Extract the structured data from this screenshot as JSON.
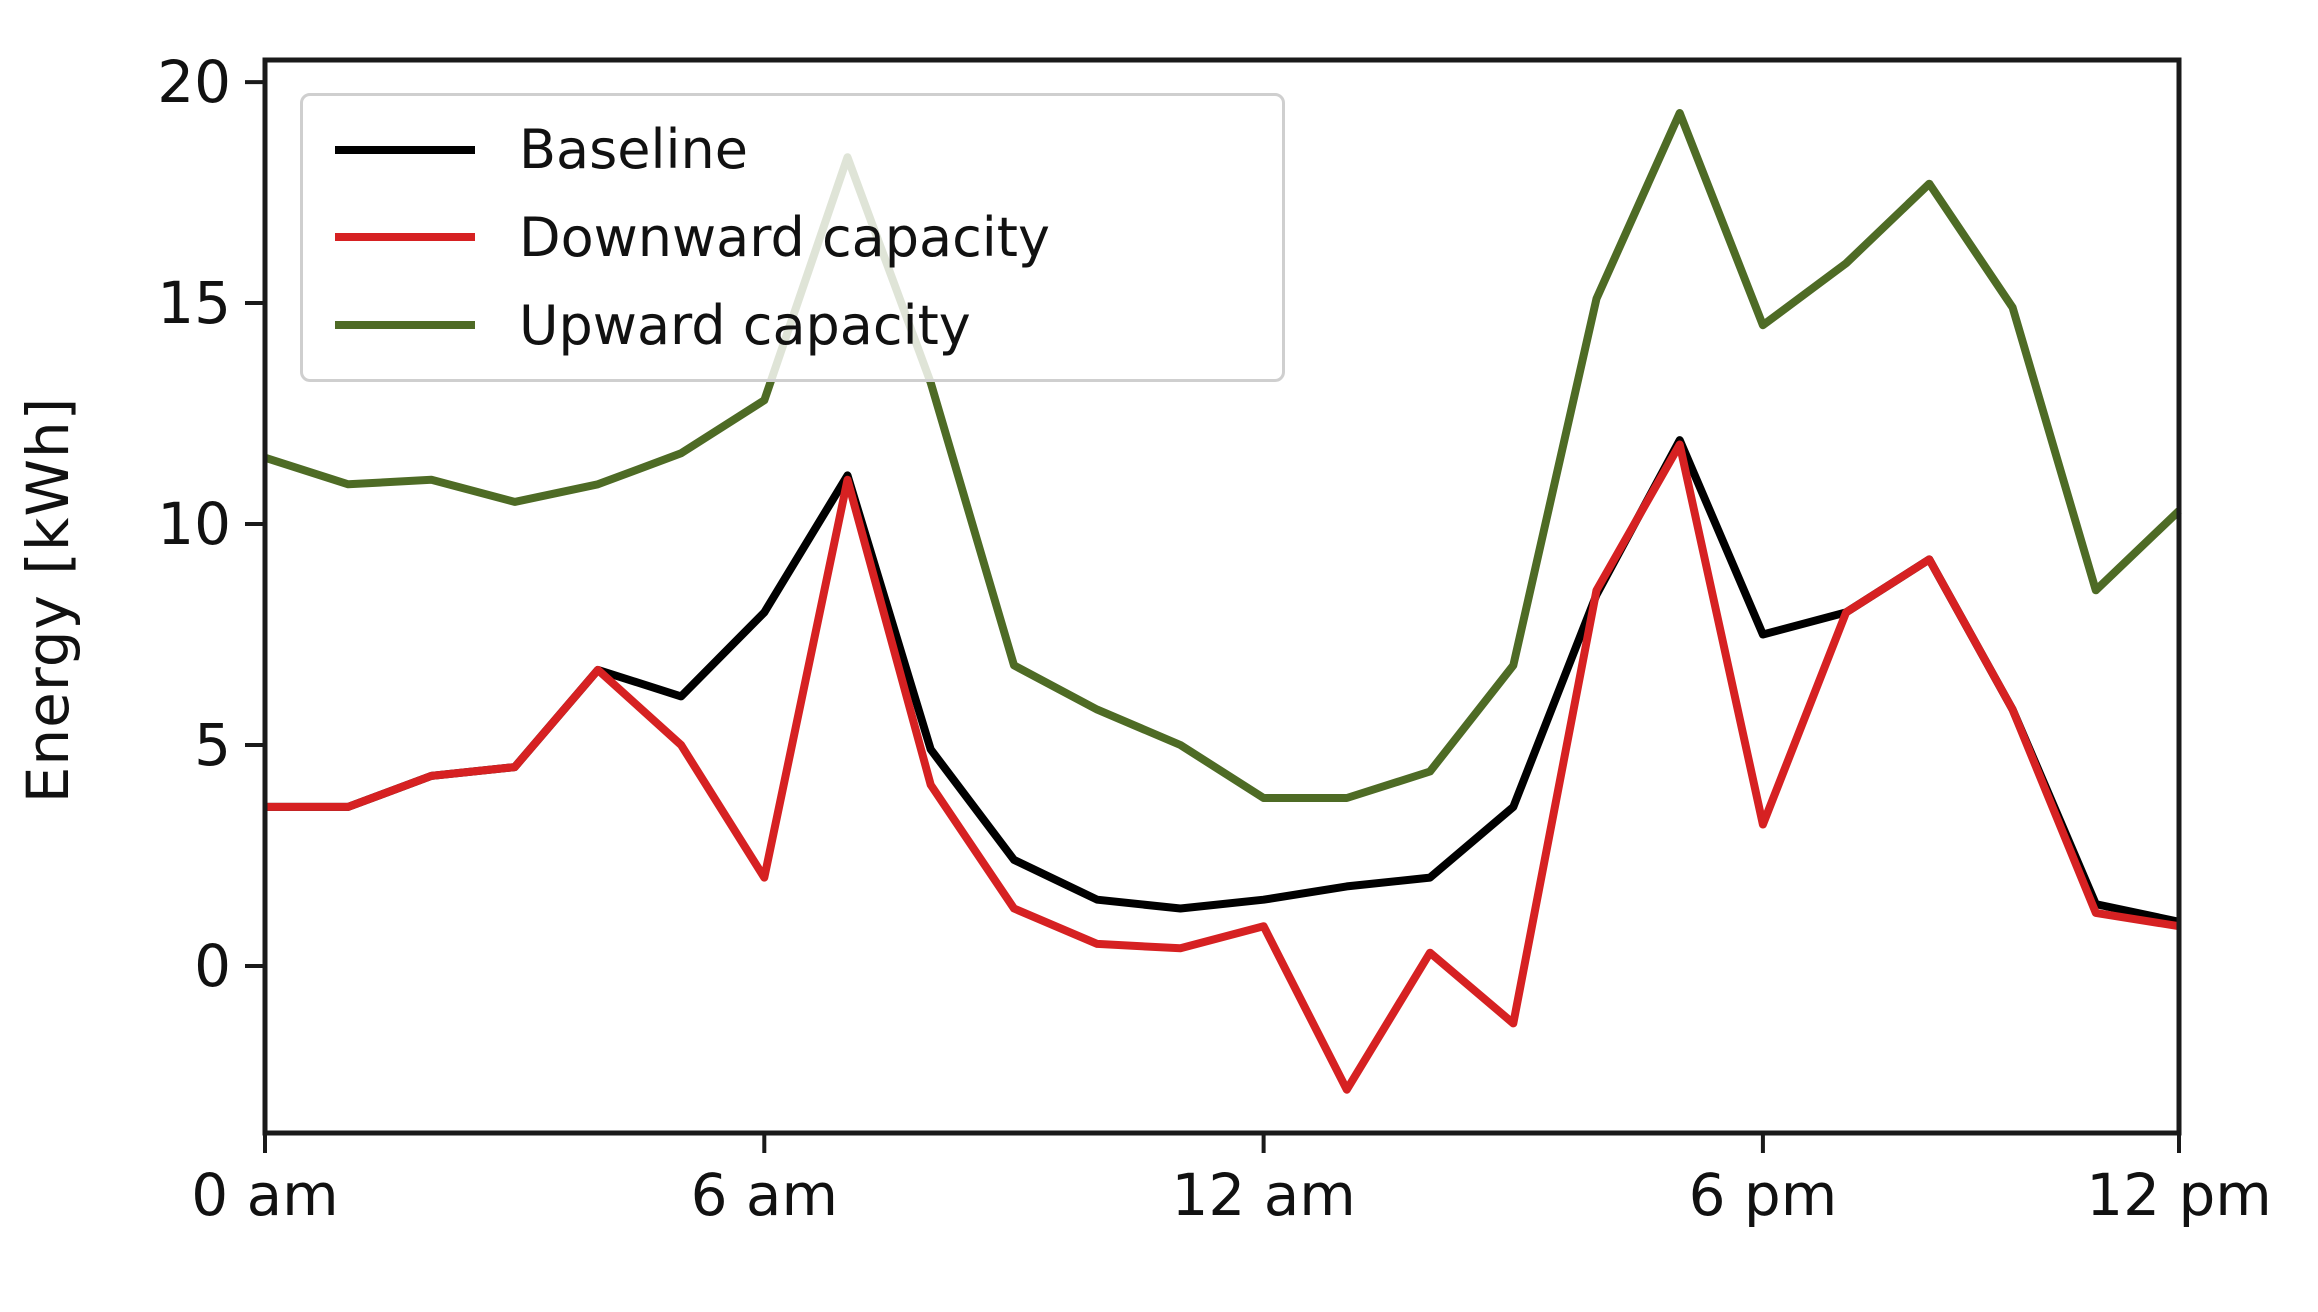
{
  "chart_data": {
    "type": "line",
    "title": "",
    "xlabel": "",
    "ylabel": "Energy [kWh]",
    "grid": false,
    "legend_position": "upper left",
    "x_hours": [
      0,
      1,
      2,
      3,
      4,
      5,
      6,
      7,
      8,
      9,
      10,
      11,
      12,
      13,
      14,
      15,
      16,
      17,
      18,
      19,
      20,
      21,
      22,
      23
    ],
    "xlim": [
      0,
      23
    ],
    "ylim": [
      -3.78,
      20.5
    ],
    "y_ticks": [
      0,
      5,
      10,
      15,
      20
    ],
    "x_ticks": [
      {
        "index": 0,
        "label": "0 am"
      },
      {
        "index": 6,
        "label": "6 am"
      },
      {
        "index": 12,
        "label": "12 am"
      },
      {
        "index": 18,
        "label": "6 pm"
      },
      {
        "index": 23,
        "label": "12 pm"
      }
    ],
    "series": [
      {
        "name": "Baseline",
        "color": "#000000",
        "values": [
          3.6,
          3.6,
          4.3,
          4.5,
          6.7,
          6.1,
          8.0,
          11.1,
          4.9,
          2.4,
          1.5,
          1.3,
          1.5,
          1.8,
          2.0,
          3.6,
          8.4,
          11.9,
          7.5,
          8.0,
          9.2,
          5.8,
          1.4,
          1.0
        ]
      },
      {
        "name": "Downward capacity",
        "color": "#d62122",
        "values": [
          3.6,
          3.6,
          4.3,
          4.5,
          6.7,
          5.0,
          2.0,
          11.0,
          4.1,
          1.3,
          0.5,
          0.4,
          0.9,
          -2.8,
          0.3,
          -1.3,
          8.5,
          11.8,
          3.2,
          8.0,
          9.2,
          5.8,
          1.2,
          0.9
        ]
      },
      {
        "name": "Upward capacity",
        "color": "#4e6b25",
        "values": [
          11.5,
          10.9,
          11.0,
          10.5,
          10.9,
          11.6,
          12.8,
          18.3,
          13.2,
          6.8,
          5.8,
          5.0,
          3.8,
          3.8,
          4.4,
          6.8,
          15.1,
          19.3,
          14.5,
          15.9,
          17.7,
          14.9,
          8.5,
          10.3
        ]
      }
    ]
  },
  "style": {
    "spine_color": "#1a1a1a",
    "tick_color": "#1a1a1a",
    "tick_label_color": "#111111",
    "legend_border_color": "#cfcfcf"
  }
}
